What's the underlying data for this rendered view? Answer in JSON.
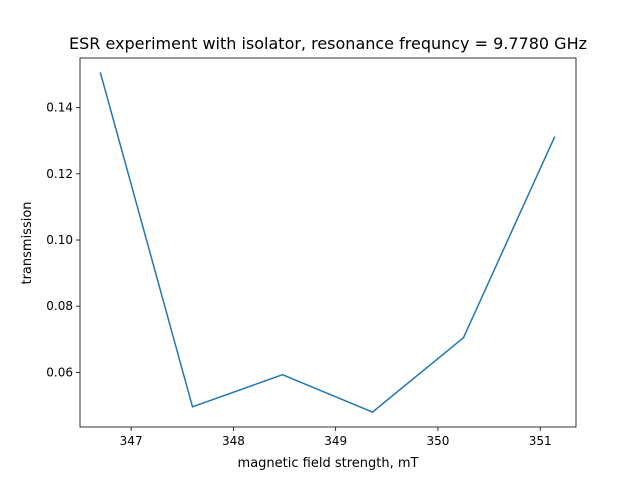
{
  "chart_data": {
    "type": "line",
    "title": "ESR experiment with isolator, resonance frequncy = 9.7780 GHz",
    "xlabel": "magnetic field strength, mT",
    "ylabel": "transmission",
    "xlim": [
      346.5,
      351.35
    ],
    "ylim": [
      0.0435,
      0.155
    ],
    "xticks": [
      347,
      348,
      349,
      350,
      351
    ],
    "xtick_labels": [
      "347",
      "348",
      "349",
      "350",
      "351"
    ],
    "yticks": [
      0.06,
      0.08,
      0.1,
      0.12,
      0.14
    ],
    "ytick_labels": [
      "0.06",
      "0.08",
      "0.10",
      "0.12",
      "0.14"
    ],
    "grid": false,
    "series": [
      {
        "color": "#1f77b4",
        "x": [
          346.7,
          347.6,
          348.48,
          349.36,
          350.25,
          351.14
        ],
        "y": [
          0.1505,
          0.0496,
          0.0593,
          0.048,
          0.0705,
          0.1311
        ]
      }
    ]
  }
}
